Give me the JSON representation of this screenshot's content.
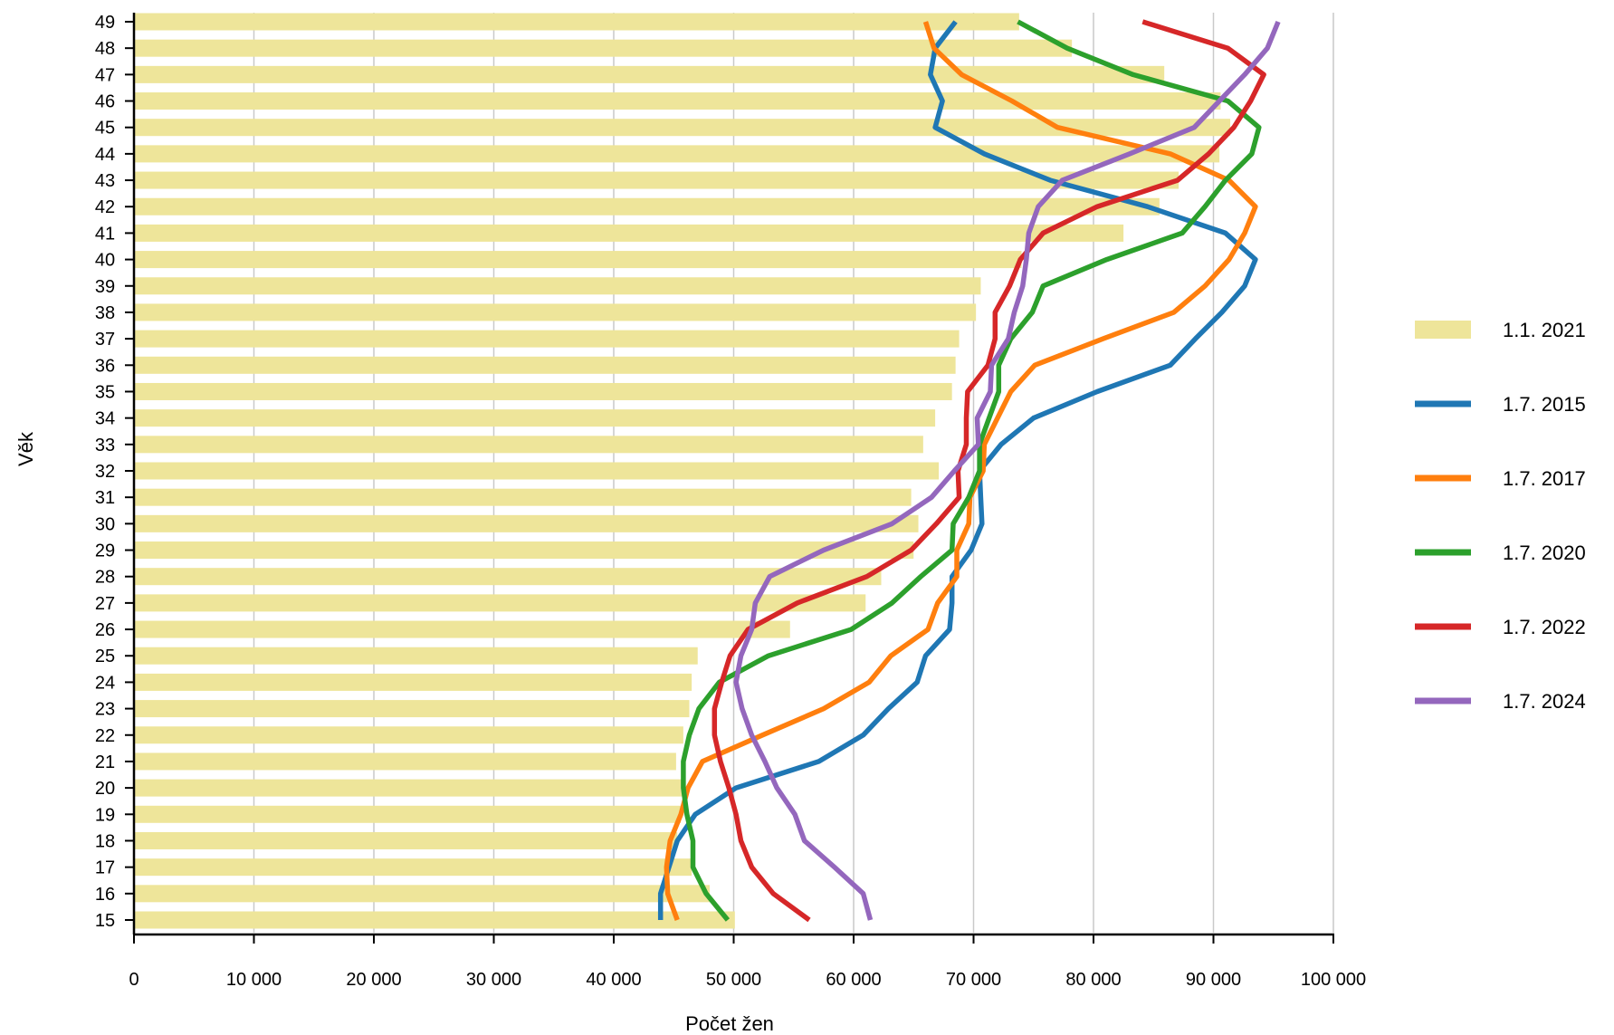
{
  "chart_data": {
    "type": "bar",
    "orientation": "horizontal",
    "xlabel": "Počet žen",
    "ylabel": "Věk",
    "xlim": [
      0,
      100000
    ],
    "x_ticks": [
      "0",
      "10 000",
      "20 000",
      "30 000",
      "40 000",
      "50 000",
      "60 000",
      "70 000",
      "80 000",
      "90 000",
      "100 000"
    ],
    "grid": "vertical",
    "legend_position": "right",
    "categories": [
      "15",
      "16",
      "17",
      "18",
      "19",
      "20",
      "21",
      "22",
      "23",
      "24",
      "25",
      "26",
      "27",
      "28",
      "29",
      "30",
      "31",
      "32",
      "33",
      "34",
      "35",
      "36",
      "37",
      "38",
      "39",
      "40",
      "41",
      "42",
      "43",
      "44",
      "45",
      "46",
      "47",
      "48",
      "49"
    ],
    "bar_series": {
      "name": "1.1. 2021",
      "color": "#eee59a",
      "values": [
        50100,
        48000,
        46500,
        45300,
        45600,
        45700,
        45200,
        45800,
        46300,
        46500,
        47000,
        54700,
        61000,
        62300,
        65000,
        65400,
        64800,
        67100,
        65800,
        66800,
        68200,
        68500,
        68800,
        70200,
        70600,
        74000,
        82500,
        85500,
        87100,
        90500,
        91400,
        90600,
        85900,
        78200,
        73800
      ]
    },
    "line_series": [
      {
        "name": "1.7. 2015",
        "color": "#1f77b4",
        "values": [
          43900,
          43900,
          44600,
          45300,
          46800,
          50200,
          57100,
          60800,
          62900,
          65300,
          66000,
          68000,
          68200,
          68200,
          69800,
          70700,
          70600,
          70500,
          72300,
          75000,
          80300,
          86400,
          88500,
          90700,
          92600,
          93500,
          91000,
          84500,
          76400,
          70900,
          66800,
          67400,
          66400,
          66800,
          68500
        ]
      },
      {
        "name": "1.7. 2017",
        "color": "#ff7f0e",
        "values": [
          45300,
          44500,
          44400,
          44700,
          45600,
          46200,
          47400,
          52400,
          57500,
          61300,
          63100,
          66200,
          67000,
          68600,
          68600,
          69600,
          69700,
          70800,
          70900,
          72000,
          73100,
          75100,
          80800,
          86700,
          89300,
          91300,
          92600,
          93500,
          91300,
          86400,
          77000,
          73200,
          69000,
          66700,
          66000
        ]
      },
      {
        "name": "1.7. 2020",
        "color": "#2ca02c",
        "values": [
          49500,
          47700,
          46600,
          46600,
          46100,
          45800,
          45800,
          46300,
          47100,
          48800,
          52900,
          59800,
          63200,
          65600,
          68200,
          68300,
          69600,
          70500,
          70500,
          71300,
          72100,
          72100,
          73100,
          74900,
          75800,
          81100,
          87400,
          89300,
          91000,
          93200,
          93800,
          91200,
          83300,
          77800,
          73700
        ]
      },
      {
        "name": "1.7. 2022",
        "color": "#d62728",
        "values": [
          56300,
          53300,
          51500,
          50600,
          50200,
          49600,
          48900,
          48400,
          48400,
          49000,
          49700,
          51200,
          55300,
          61100,
          64800,
          66900,
          68800,
          68700,
          69400,
          69400,
          69500,
          71200,
          71800,
          71800,
          73000,
          73900,
          75800,
          80300,
          87000,
          89600,
          91700,
          93100,
          94200,
          91200,
          84100
        ]
      },
      {
        "name": "1.7. 2024",
        "color": "#9467bd",
        "values": [
          61400,
          60800,
          58400,
          55900,
          55100,
          53600,
          52600,
          51500,
          50700,
          50200,
          50600,
          51500,
          51800,
          53000,
          57500,
          63200,
          66500,
          68400,
          70400,
          70300,
          71400,
          71500,
          72900,
          73400,
          74100,
          74400,
          74600,
          75400,
          77400,
          83000,
          88400,
          90500,
          92600,
          94500,
          95400
        ]
      }
    ]
  }
}
